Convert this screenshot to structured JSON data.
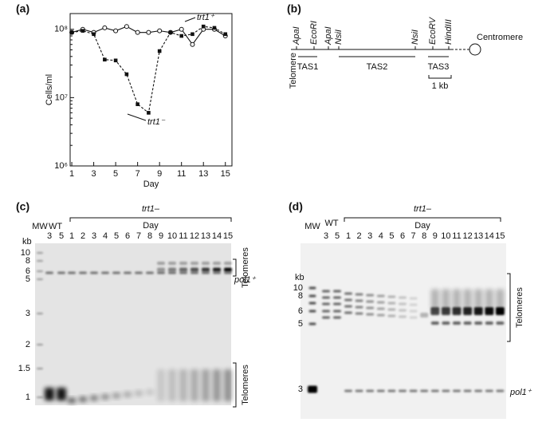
{
  "panel_labels": [
    "(a)",
    "(b)",
    "(c)",
    "(d)"
  ],
  "chart_data": {
    "type": "line",
    "x_label": "Day",
    "y_label": "Cells/ml",
    "x": [
      1,
      2,
      3,
      4,
      5,
      6,
      7,
      8,
      9,
      10,
      11,
      12,
      13,
      14,
      15
    ],
    "series": [
      {
        "name": "trt1⁺",
        "color": "#111111",
        "marker": "open-circle",
        "linestyle": "solid",
        "values": [
          90000000,
          100000000,
          90000000,
          105000000,
          95000000,
          110000000,
          90000000,
          90000000,
          95000000,
          90000000,
          100000000,
          60000000,
          100000000,
          100000000,
          80000000
        ]
      },
      {
        "name": "trt1⁻",
        "color": "#111111",
        "marker": "filled-square",
        "linestyle": "dashed",
        "values": [
          90000000,
          95000000,
          85000000,
          36000000,
          35000000,
          22000000,
          8000000,
          6000000,
          48000000,
          90000000,
          80000000,
          85000000,
          110000000,
          105000000,
          85000000
        ]
      }
    ],
    "xlim": [
      0.85,
      15.6
    ],
    "xticks": [
      1,
      3,
      5,
      7,
      9,
      11,
      13,
      15
    ],
    "ylim": [
      1000000,
      170000000
    ],
    "y_log": true,
    "yticks": [
      {
        "value": 1000000,
        "label": "10⁶"
      },
      {
        "value": 10000000,
        "label": "10⁷"
      },
      {
        "value": 100000000,
        "label": "10⁸"
      }
    ]
  },
  "map": {
    "enzymes": [
      "ApaI",
      "EcoRI",
      "ApaI",
      "NsiI",
      "NsiI",
      "EcoRV",
      "HindIII"
    ],
    "telomere": "Telomere",
    "centromere": "Centromere",
    "regions": [
      "TAS1",
      "TAS2",
      "TAS3"
    ],
    "scale": "1 kb"
  },
  "gels": [
    {
      "mw": "MW",
      "wt": "WT",
      "wt_lanes": [
        "3",
        "5"
      ],
      "group": "trt1–",
      "axis": "Day",
      "days": [
        "1",
        "2",
        "3",
        "4",
        "5",
        "6",
        "7",
        "8",
        "9",
        "10",
        "11",
        "12",
        "13",
        "14",
        "15"
      ],
      "kb": "kb",
      "markers": [
        "10",
        "8",
        "6",
        "5",
        "3",
        "2",
        "1.5",
        "1"
      ],
      "annotations": [
        "Telomeres",
        "pol1⁺",
        "Telomeres"
      ]
    },
    {
      "mw": "MW",
      "wt": "WT",
      "wt_lanes": [
        "3",
        "5"
      ],
      "group": "trt1–",
      "axis": "Day",
      "days": [
        "1",
        "2",
        "3",
        "4",
        "5",
        "6",
        "7",
        "8",
        "9",
        "10",
        "11",
        "12",
        "13",
        "14",
        "15"
      ],
      "kb": "kb",
      "markers": [
        "10",
        "8",
        "6",
        "5",
        "3"
      ],
      "annotations": [
        "Telomeres",
        "pol1⁺"
      ]
    }
  ]
}
